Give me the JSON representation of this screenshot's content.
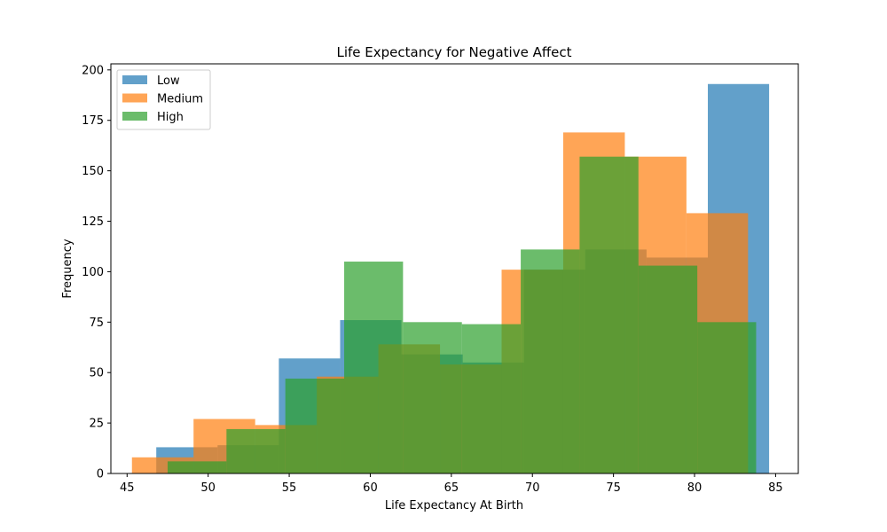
{
  "chart_data": {
    "type": "bar",
    "title": "Life Expectancy for Negative Affect",
    "xlabel": "Life Expectancy At Birth",
    "ylabel": "Frequency",
    "xlim": [
      44.0,
      86.4
    ],
    "ylim": [
      0,
      203
    ],
    "xticks": [
      "45",
      "50",
      "55",
      "60",
      "65",
      "70",
      "75",
      "80",
      "85"
    ],
    "yticks": [
      "0",
      "25",
      "50",
      "75",
      "100",
      "125",
      "150",
      "175",
      "200"
    ],
    "alpha": 0.7,
    "legend_position": "top-left",
    "series": [
      {
        "name": "Low",
        "color": "#1f77b4",
        "edges": [
          46.8,
          50.58,
          54.36,
          58.14,
          61.92,
          65.7,
          69.48,
          73.26,
          77.04,
          80.82,
          84.6
        ],
        "counts": [
          13,
          14,
          57,
          76,
          59,
          55,
          101,
          111,
          107,
          193
        ]
      },
      {
        "name": "Medium",
        "color": "#ff7f0e",
        "edges": [
          45.3,
          49.1,
          52.9,
          56.7,
          60.5,
          64.3,
          68.1,
          71.9,
          75.7,
          79.5,
          83.3
        ],
        "counts": [
          8,
          27,
          24,
          48,
          64,
          54,
          101,
          169,
          157,
          129
        ]
      },
      {
        "name": "High",
        "color": "#2ca02c",
        "edges": [
          47.5,
          51.13,
          54.76,
          58.39,
          62.02,
          65.65,
          69.28,
          72.91,
          76.54,
          80.17,
          83.8
        ],
        "counts": [
          6,
          22,
          47,
          105,
          75,
          74,
          111,
          157,
          103,
          75
        ]
      }
    ]
  }
}
